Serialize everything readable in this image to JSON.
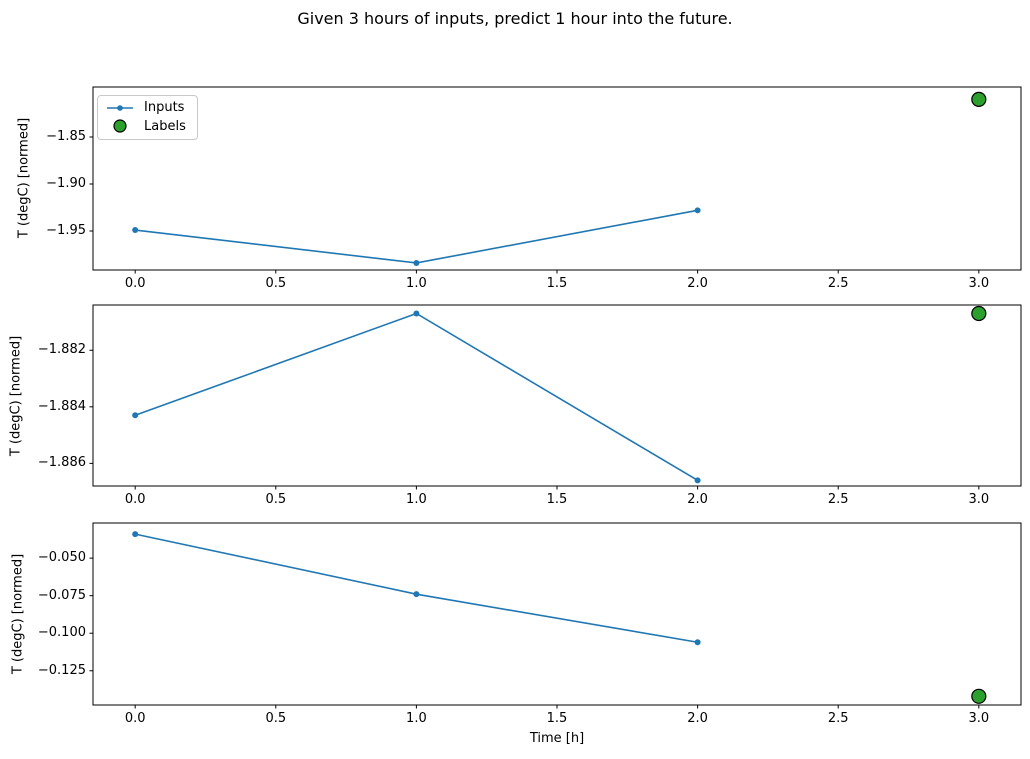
{
  "figure": {
    "title": "Given 3 hours of inputs, predict 1 hour into the future."
  },
  "axes_labels": {
    "xlabel": "Time [h]",
    "ylabel": "T (degC) [normed]"
  },
  "legend": {
    "position": "upper-left-of-first-subplot",
    "entries": [
      {
        "label": "Inputs",
        "marker": "line-with-dot",
        "color": "#1f77b4"
      },
      {
        "label": "Labels",
        "marker": "circle",
        "color": "#2ca02c"
      }
    ]
  },
  "colors": {
    "inputs_line": "#1f77b4",
    "labels_fill": "#2ca02c",
    "labels_edge": "#000000",
    "spine": "#000000",
    "background": "#ffffff"
  },
  "chart_data": [
    {
      "type": "line",
      "panel": "top",
      "title": "",
      "xlabel": "",
      "ylabel": "T (degC) [normed]",
      "grid": false,
      "legend": true,
      "xlim": [
        -0.15,
        3.15
      ],
      "ylim": [
        -1.9915,
        -1.7968
      ],
      "xticks": [
        {
          "v": 0.0,
          "label": "0.0"
        },
        {
          "v": 0.5,
          "label": "0.5"
        },
        {
          "v": 1.0,
          "label": "1.0"
        },
        {
          "v": 1.5,
          "label": "1.5"
        },
        {
          "v": 2.0,
          "label": "2.0"
        },
        {
          "v": 2.5,
          "label": "2.5"
        },
        {
          "v": 3.0,
          "label": "3.0"
        }
      ],
      "yticks": [
        {
          "v": -1.85,
          "label": "−1.85"
        },
        {
          "v": -1.9,
          "label": "−1.90"
        },
        {
          "v": -1.95,
          "label": "−1.95"
        }
      ],
      "series": [
        {
          "name": "Inputs",
          "type": "line",
          "color": "#1f77b4",
          "x": [
            0,
            1,
            2
          ],
          "y": [
            -1.949,
            -1.984,
            -1.928
          ]
        },
        {
          "name": "Labels",
          "type": "scatter",
          "color": "#2ca02c",
          "edge": "#000000",
          "x": [
            3
          ],
          "y": [
            -1.81
          ]
        }
      ]
    },
    {
      "type": "line",
      "panel": "middle",
      "title": "",
      "xlabel": "",
      "ylabel": "T (degC) [normed]",
      "grid": false,
      "legend": false,
      "xlim": [
        -0.15,
        3.15
      ],
      "ylim": [
        -1.8868,
        -1.8804
      ],
      "xticks": [
        {
          "v": 0.0,
          "label": "0.0"
        },
        {
          "v": 0.5,
          "label": "0.5"
        },
        {
          "v": 1.0,
          "label": "1.0"
        },
        {
          "v": 1.5,
          "label": "1.5"
        },
        {
          "v": 2.0,
          "label": "2.0"
        },
        {
          "v": 2.5,
          "label": "2.5"
        },
        {
          "v": 3.0,
          "label": "3.0"
        }
      ],
      "yticks": [
        {
          "v": -1.882,
          "label": "−1.882"
        },
        {
          "v": -1.884,
          "label": "−1.884"
        },
        {
          "v": -1.886,
          "label": "−1.886"
        }
      ],
      "series": [
        {
          "name": "Inputs",
          "type": "line",
          "color": "#1f77b4",
          "x": [
            0,
            1,
            2
          ],
          "y": [
            -1.8843,
            -1.8807,
            -1.8866
          ]
        },
        {
          "name": "Labels",
          "type": "scatter",
          "color": "#2ca02c",
          "edge": "#000000",
          "x": [
            3
          ],
          "y": [
            -1.8807
          ]
        }
      ]
    },
    {
      "type": "line",
      "panel": "bottom",
      "title": "",
      "xlabel": "Time [h]",
      "ylabel": "T (degC) [normed]",
      "grid": false,
      "legend": false,
      "xlim": [
        -0.15,
        3.15
      ],
      "ylim": [
        -0.1478,
        -0.0266
      ],
      "xticks": [
        {
          "v": 0.0,
          "label": "0.0"
        },
        {
          "v": 0.5,
          "label": "0.5"
        },
        {
          "v": 1.0,
          "label": "1.0"
        },
        {
          "v": 1.5,
          "label": "1.5"
        },
        {
          "v": 2.0,
          "label": "2.0"
        },
        {
          "v": 2.5,
          "label": "2.5"
        },
        {
          "v": 3.0,
          "label": "3.0"
        }
      ],
      "yticks": [
        {
          "v": -0.05,
          "label": "−0.050"
        },
        {
          "v": -0.075,
          "label": "−0.075"
        },
        {
          "v": -0.1,
          "label": "−0.100"
        },
        {
          "v": -0.125,
          "label": "−0.125"
        }
      ],
      "series": [
        {
          "name": "Inputs",
          "type": "line",
          "color": "#1f77b4",
          "x": [
            0,
            1,
            2
          ],
          "y": [
            -0.034,
            -0.074,
            -0.106
          ]
        },
        {
          "name": "Labels",
          "type": "scatter",
          "color": "#2ca02c",
          "edge": "#000000",
          "x": [
            3
          ],
          "y": [
            -0.142
          ]
        }
      ]
    }
  ]
}
